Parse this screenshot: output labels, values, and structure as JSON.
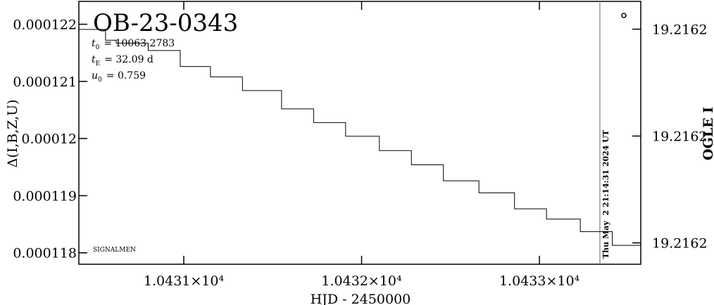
{
  "chart_data": {
    "type": "line",
    "step": "post",
    "title": "OB-23-0343",
    "params": [
      {
        "symbol": "t",
        "sub": "0",
        "text": "= 10063.2783"
      },
      {
        "symbol": "t",
        "sub": "E",
        "text": "= 32.09 d"
      },
      {
        "symbol": "u",
        "sub": "0",
        "text": "= 0.759"
      }
    ],
    "note": "SIGNALMEN",
    "timestamp": "Thu May  2 21:14:31 2024 UT",
    "vline": 10433.34,
    "x_label": "HJD - 2450000",
    "y_label": "Δ(I,B,Z,U)",
    "y2_label": "OGLE I",
    "x": [
      10430.41,
      10430.56,
      10430.62,
      10430.8,
      10430.98,
      10431.15,
      10431.33,
      10431.55,
      10431.73,
      10431.91,
      10432.1,
      10432.28,
      10432.46,
      10432.66,
      10432.86,
      10433.04,
      10433.23,
      10433.41,
      10433.57
    ],
    "series": [
      {
        "color": "#000000",
        "values": [
          0.00012191,
          0.00012172,
          0.00012167,
          0.00012154,
          0.00012126,
          0.00012108,
          0.00012084,
          0.00012052,
          0.00012028,
          0.00012004,
          0.00011979,
          0.00011954,
          0.00011926,
          0.00011905,
          0.00011877,
          0.00011859,
          0.00011837,
          0.00011813,
          0.00011793
        ]
      }
    ],
    "xlim": [
      10430.41,
      10433.57
    ],
    "xticks": [
      {
        "value": 10431,
        "label": "1.0431×10⁴"
      },
      {
        "value": 10432,
        "label": "1.0432×10⁴"
      },
      {
        "value": 10433,
        "label": "1.0433×10⁴"
      }
    ],
    "ylim": [
      0.0001178,
      0.0001224
    ],
    "yticks": [
      0.000118,
      0.000119,
      0.00012,
      0.000121,
      0.000122
    ],
    "y2lim": [
      19.21614,
      19.216263
    ],
    "y2ticks": [
      {
        "value": 19.21615,
        "label": "19.2162"
      },
      {
        "value": 19.2162,
        "label": "19.2162"
      },
      {
        "value": 19.21625,
        "label": "19.2162"
      }
    ]
  }
}
